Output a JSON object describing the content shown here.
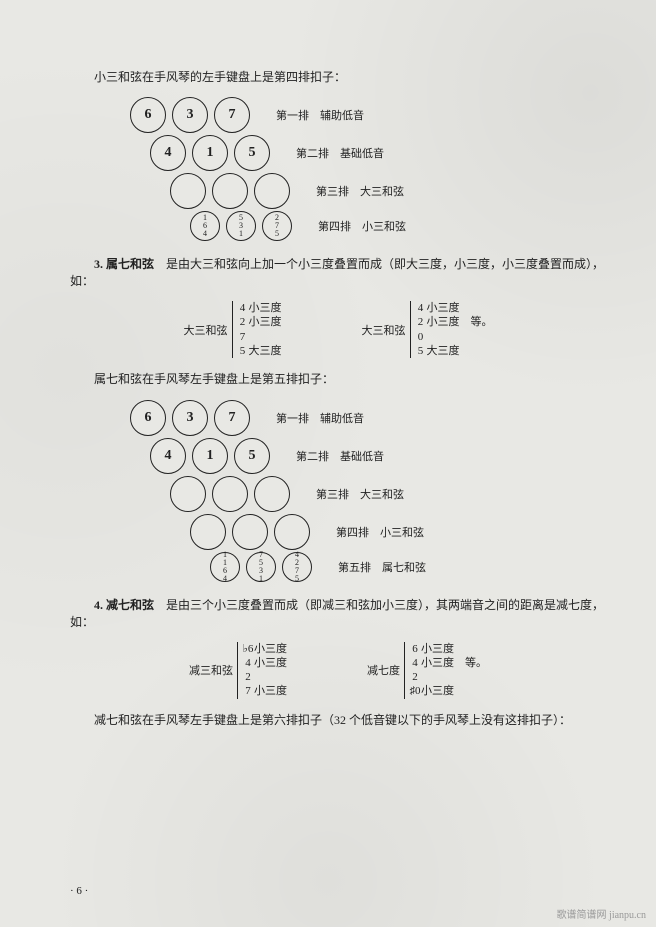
{
  "intro1": "小三和弦在手风琴的左手键盘上是第四排扣子：",
  "diagram4": {
    "rows": [
      {
        "circles": [
          "6",
          "3",
          "7"
        ],
        "offset": "",
        "label_a": "第一排",
        "label_b": "辅助低音"
      },
      {
        "circles": [
          "4",
          "1",
          "5"
        ],
        "offset": "offset1",
        "label_a": "第二排",
        "label_b": "基础低音"
      },
      {
        "circles": [
          "",
          "",
          ""
        ],
        "offset": "offset2",
        "label_a": "第三排",
        "label_b": "大三和弦"
      },
      {
        "circles": [
          "1\n6\n4",
          "5\n3\n1",
          "2\n7\n5"
        ],
        "offset": "offset3",
        "small": true,
        "label_a": "第四排",
        "label_b": "小三和弦"
      }
    ]
  },
  "sec3_num": "3. 属七和弦",
  "sec3_text": "　是由大三和弦向上加一个小三度叠置而成（即大三度，小三度，小三度叠置而成），如：",
  "intervals3": {
    "left_label": "大三和弦",
    "left_lines": [
      {
        "n": "4",
        "t": "小三度"
      },
      {
        "n": "2",
        "t": "小三度"
      },
      {
        "n": "7",
        "t": ""
      },
      {
        "n": "5",
        "t": "大三度"
      }
    ],
    "right_label": "大三和弦",
    "right_lines": [
      {
        "n": "4",
        "t": "小三度"
      },
      {
        "n": "2",
        "t": "小三度　等。"
      },
      {
        "n": "0",
        "t": ""
      },
      {
        "n": "5",
        "t": "大三度"
      }
    ]
  },
  "intro5": "属七和弦在手风琴左手键盘上是第五排扣子：",
  "diagram5": {
    "rows": [
      {
        "circles": [
          "6",
          "3",
          "7"
        ],
        "offset": "",
        "label_a": "第一排",
        "label_b": "辅助低音"
      },
      {
        "circles": [
          "4",
          "1",
          "5"
        ],
        "offset": "offset1",
        "label_a": "第二排",
        "label_b": "基础低音"
      },
      {
        "circles": [
          "",
          "",
          ""
        ],
        "offset": "offset2",
        "label_a": "第三排",
        "label_b": "大三和弦"
      },
      {
        "circles": [
          "",
          "",
          ""
        ],
        "offset": "offset3",
        "label_a": "第四排",
        "label_b": "小三和弦"
      },
      {
        "circles": [
          "1\n1\n6\n4",
          "7\n5\n3\n1",
          "4\n2\n7\n5"
        ],
        "offset": "offset4",
        "small": true,
        "label_a": "第五排",
        "label_b": "属七和弦"
      }
    ]
  },
  "sec4_num": "4. 减七和弦",
  "sec4_text": "　是由三个小三度叠置而成（即减三和弦加小三度），其两端音之间的距离是减七度，如：",
  "intervals4": {
    "left_label": "减三和弦",
    "left_lines": [
      {
        "n": "♭6",
        "t": "小三度"
      },
      {
        "n": "4",
        "t": "小三度"
      },
      {
        "n": "2",
        "t": ""
      },
      {
        "n": "7",
        "t": "小三度"
      }
    ],
    "right_label": "减七度",
    "right_lines": [
      {
        "n": "6",
        "t": "小三度"
      },
      {
        "n": "4",
        "t": "小三度　等。"
      },
      {
        "n": "2",
        "t": ""
      },
      {
        "n": "♯0",
        "t": "小三度"
      }
    ]
  },
  "outro": "减七和弦在手风琴左手键盘上是第六排扣子（32 个低音键以下的手风琴上没有这排扣子）：",
  "page_number": "· 6 ·",
  "watermark": "歌谱简谱网  jianpu.cn"
}
